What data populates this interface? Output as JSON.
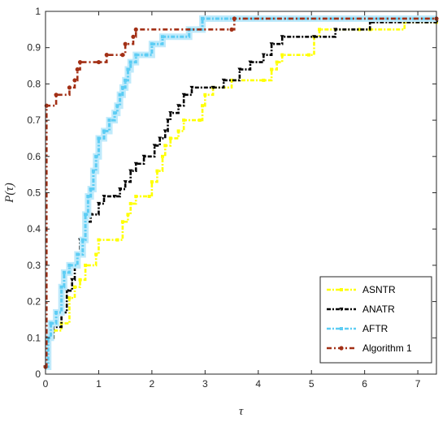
{
  "chart_data": {
    "type": "line",
    "step": true,
    "title": "",
    "xlabel": "τ",
    "ylabel": "P(τ)",
    "xlim": [
      0,
      7.35
    ],
    "ylim": [
      0,
      1
    ],
    "xticks": [
      "0",
      "1",
      "2",
      "3",
      "4",
      "5",
      "6",
      "7"
    ],
    "yticks": [
      "0",
      "0.1",
      "0.2",
      "0.3",
      "0.4",
      "0.5",
      "0.6",
      "0.7",
      "0.8",
      "0.9",
      "1"
    ],
    "grid": false,
    "legend_position": "lower-right",
    "series": [
      {
        "name": "ASNTR",
        "color": "#ffff00",
        "points": [
          [
            0.0,
            0.02
          ],
          [
            0.05,
            0.1
          ],
          [
            0.15,
            0.12
          ],
          [
            0.3,
            0.14
          ],
          [
            0.45,
            0.21
          ],
          [
            0.55,
            0.24
          ],
          [
            0.65,
            0.26
          ],
          [
            0.75,
            0.3
          ],
          [
            0.95,
            0.33
          ],
          [
            1.0,
            0.37
          ],
          [
            1.35,
            0.37
          ],
          [
            1.45,
            0.42
          ],
          [
            1.55,
            0.44
          ],
          [
            1.6,
            0.47
          ],
          [
            1.7,
            0.49
          ],
          [
            1.95,
            0.49
          ],
          [
            2.0,
            0.53
          ],
          [
            2.1,
            0.56
          ],
          [
            2.2,
            0.6
          ],
          [
            2.25,
            0.63
          ],
          [
            2.35,
            0.65
          ],
          [
            2.5,
            0.67
          ],
          [
            2.6,
            0.7
          ],
          [
            2.9,
            0.7
          ],
          [
            2.95,
            0.74
          ],
          [
            3.0,
            0.77
          ],
          [
            3.15,
            0.79
          ],
          [
            3.5,
            0.81
          ],
          [
            4.1,
            0.81
          ],
          [
            4.25,
            0.84
          ],
          [
            4.35,
            0.86
          ],
          [
            4.45,
            0.88
          ],
          [
            4.95,
            0.88
          ],
          [
            5.05,
            0.93
          ],
          [
            5.15,
            0.95
          ],
          [
            5.9,
            0.95
          ],
          [
            6.1,
            0.95
          ],
          [
            6.75,
            0.97
          ],
          [
            7.35,
            0.97
          ]
        ]
      },
      {
        "name": "ANATR",
        "color": "#000000",
        "points": [
          [
            0.0,
            0.02
          ],
          [
            0.05,
            0.1
          ],
          [
            0.15,
            0.13
          ],
          [
            0.3,
            0.17
          ],
          [
            0.4,
            0.23
          ],
          [
            0.5,
            0.26
          ],
          [
            0.55,
            0.3
          ],
          [
            0.6,
            0.33
          ],
          [
            0.65,
            0.37
          ],
          [
            0.75,
            0.42
          ],
          [
            0.85,
            0.44
          ],
          [
            1.0,
            0.47
          ],
          [
            1.1,
            0.49
          ],
          [
            1.3,
            0.49
          ],
          [
            1.4,
            0.51
          ],
          [
            1.5,
            0.53
          ],
          [
            1.6,
            0.56
          ],
          [
            1.7,
            0.58
          ],
          [
            1.85,
            0.6
          ],
          [
            2.05,
            0.63
          ],
          [
            2.15,
            0.65
          ],
          [
            2.25,
            0.67
          ],
          [
            2.3,
            0.7
          ],
          [
            2.35,
            0.72
          ],
          [
            2.5,
            0.74
          ],
          [
            2.6,
            0.77
          ],
          [
            2.75,
            0.79
          ],
          [
            3.15,
            0.79
          ],
          [
            3.35,
            0.81
          ],
          [
            3.65,
            0.84
          ],
          [
            3.85,
            0.86
          ],
          [
            4.1,
            0.88
          ],
          [
            4.25,
            0.91
          ],
          [
            4.45,
            0.93
          ],
          [
            5.05,
            0.93
          ],
          [
            5.45,
            0.95
          ],
          [
            6.1,
            0.97
          ],
          [
            7.35,
            0.97
          ]
        ]
      },
      {
        "name": "AFTR",
        "color": "#5ccdf4",
        "points": [
          [
            0.0,
            0.02
          ],
          [
            0.05,
            0.1
          ],
          [
            0.1,
            0.14
          ],
          [
            0.2,
            0.17
          ],
          [
            0.3,
            0.24
          ],
          [
            0.35,
            0.28
          ],
          [
            0.45,
            0.3
          ],
          [
            0.6,
            0.33
          ],
          [
            0.7,
            0.37
          ],
          [
            0.75,
            0.44
          ],
          [
            0.8,
            0.49
          ],
          [
            0.85,
            0.51
          ],
          [
            0.9,
            0.56
          ],
          [
            0.95,
            0.6
          ],
          [
            1.0,
            0.65
          ],
          [
            1.1,
            0.67
          ],
          [
            1.2,
            0.7
          ],
          [
            1.3,
            0.72
          ],
          [
            1.35,
            0.74
          ],
          [
            1.4,
            0.77
          ],
          [
            1.45,
            0.79
          ],
          [
            1.5,
            0.81
          ],
          [
            1.55,
            0.84
          ],
          [
            1.6,
            0.86
          ],
          [
            1.7,
            0.88
          ],
          [
            1.9,
            0.88
          ],
          [
            2.0,
            0.91
          ],
          [
            2.2,
            0.93
          ],
          [
            2.7,
            0.95
          ],
          [
            2.95,
            0.98
          ],
          [
            7.35,
            0.98
          ]
        ]
      },
      {
        "name": "Algorithm 1",
        "color": "#a33016",
        "points": [
          [
            0.0,
            0.02
          ],
          [
            0.02,
            0.74
          ],
          [
            0.2,
            0.77
          ],
          [
            0.45,
            0.79
          ],
          [
            0.55,
            0.81
          ],
          [
            0.6,
            0.84
          ],
          [
            0.65,
            0.86
          ],
          [
            1.0,
            0.86
          ],
          [
            1.15,
            0.88
          ],
          [
            1.45,
            0.88
          ],
          [
            1.5,
            0.91
          ],
          [
            1.65,
            0.93
          ],
          [
            1.7,
            0.95
          ],
          [
            3.5,
            0.95
          ],
          [
            3.55,
            0.98
          ],
          [
            7.35,
            0.98
          ]
        ]
      }
    ]
  }
}
